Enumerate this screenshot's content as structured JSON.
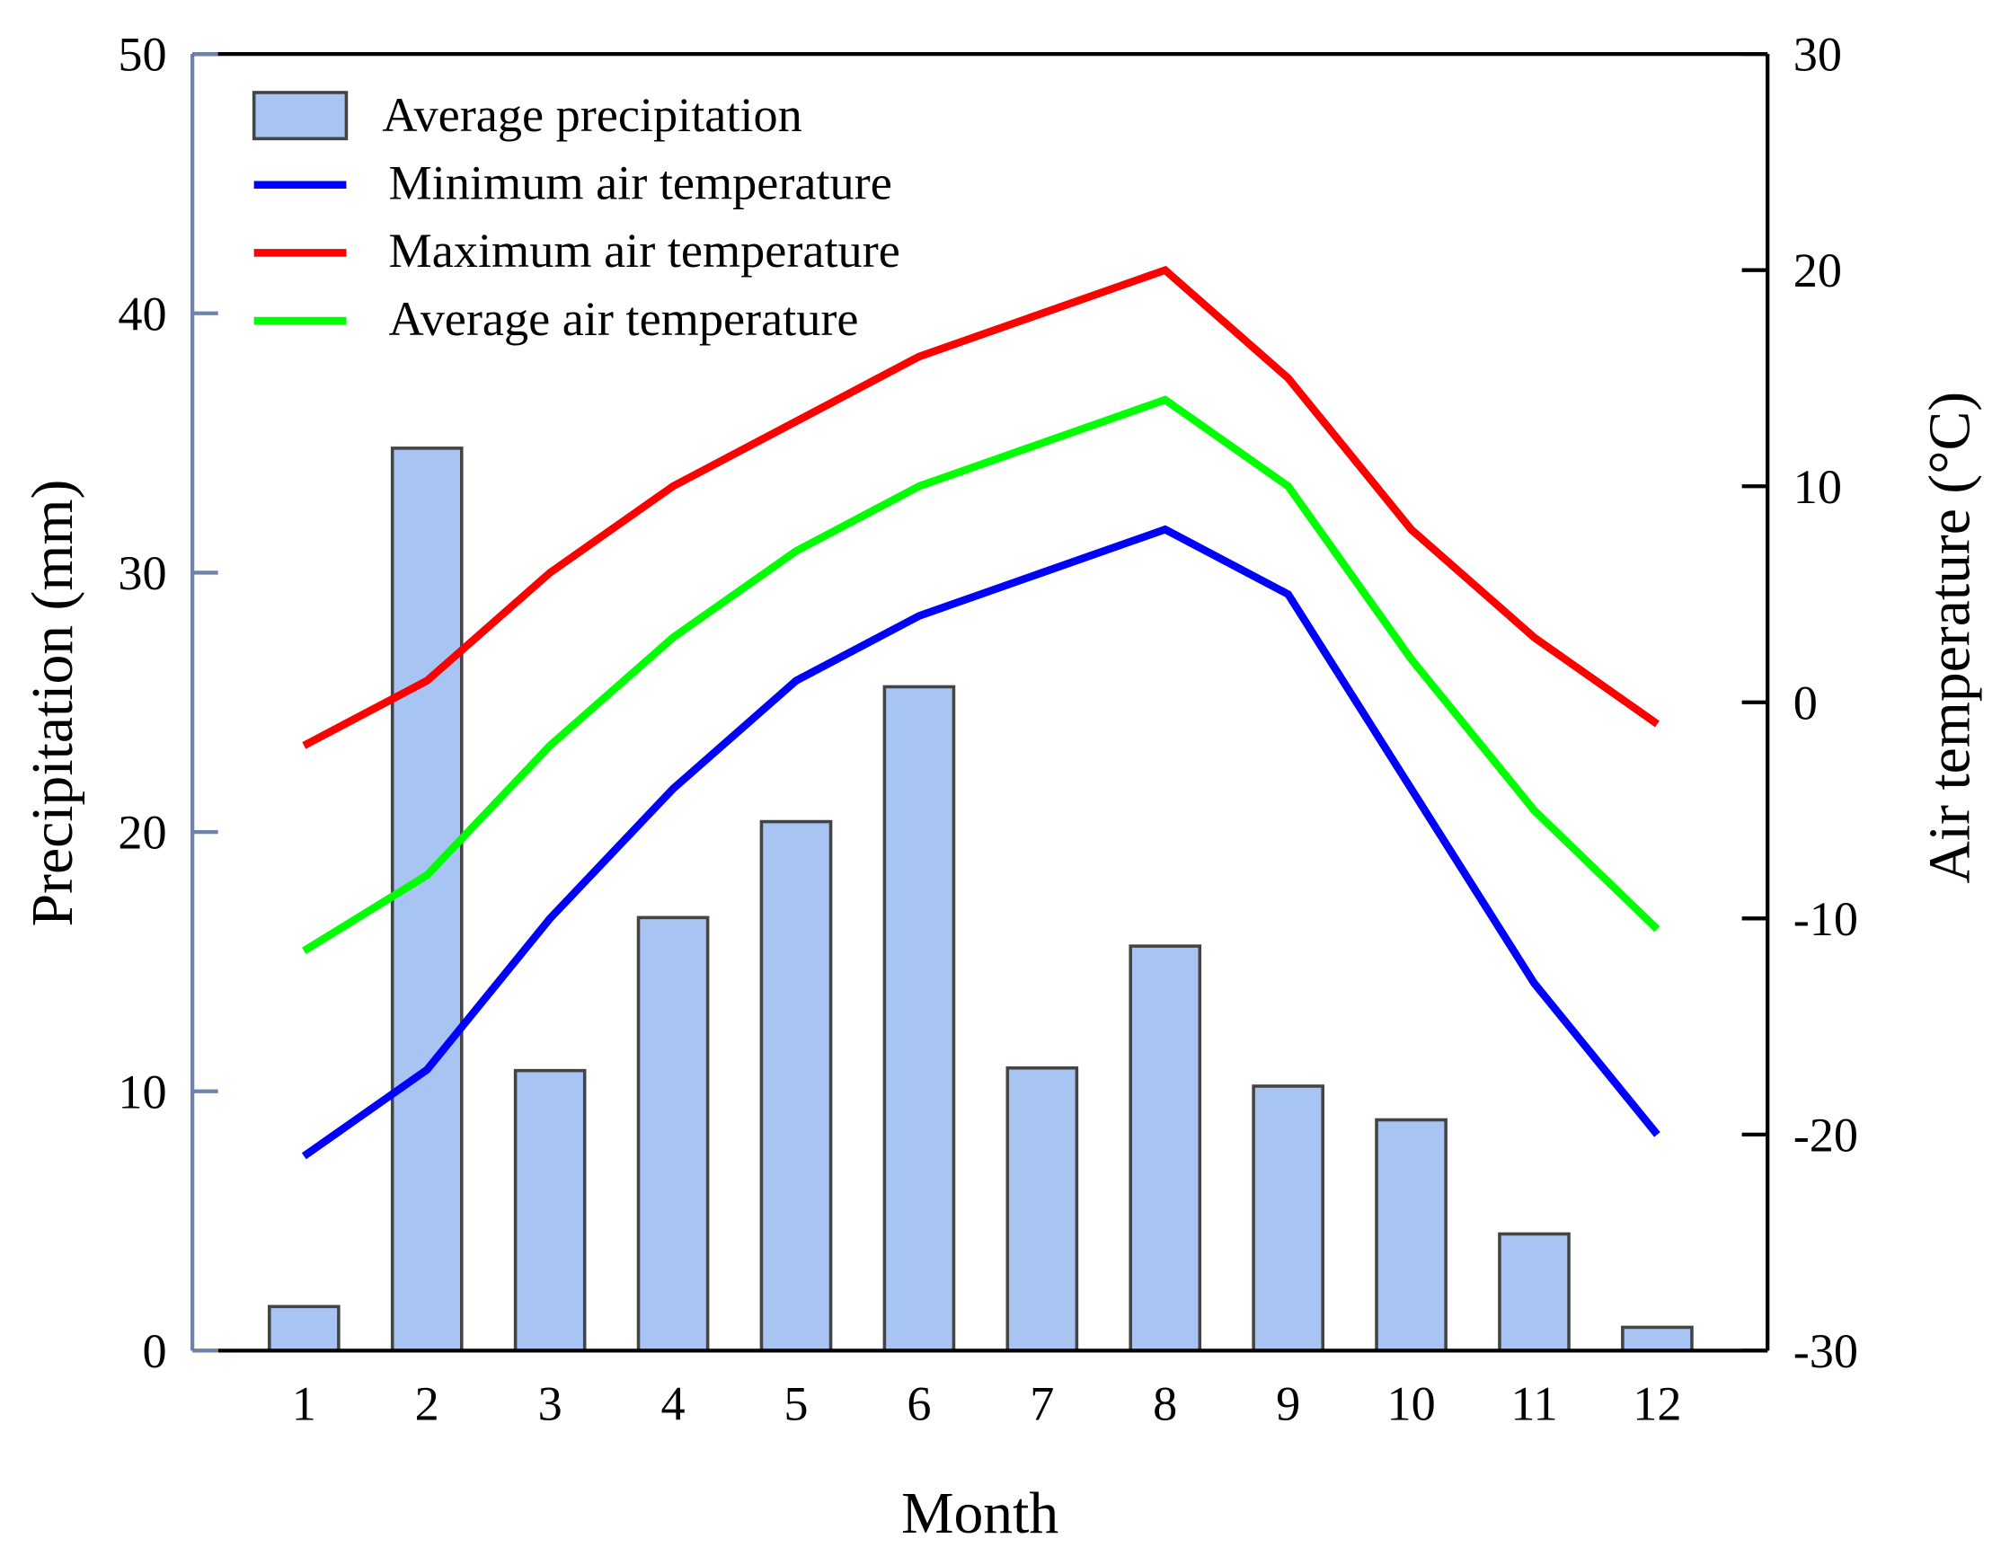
{
  "chart_data": {
    "type": "bar+line",
    "xlabel": "Month",
    "ylabel_left": "Precipitation (mm)",
    "ylabel_right": "Air temperature (°C)",
    "categories": [
      "1",
      "2",
      "3",
      "4",
      "5",
      "6",
      "7",
      "8",
      "9",
      "10",
      "11",
      "12"
    ],
    "ylim_left": [
      0,
      50
    ],
    "yticks_left": [
      "0",
      "10",
      "20",
      "30",
      "40",
      "50"
    ],
    "ylim_right": [
      -30,
      30
    ],
    "yticks_right": [
      "-30",
      "-20",
      "-10",
      "0",
      "10",
      "20",
      "30"
    ],
    "grid": false,
    "legend_position": "top-left",
    "series": [
      {
        "name": "Average precipitation",
        "type": "bar",
        "axis": "left",
        "color": "#a8c4f2",
        "values": [
          1.7,
          34.8,
          10.8,
          16.7,
          20.4,
          25.6,
          10.9,
          15.6,
          10.2,
          8.9,
          4.5,
          0.9
        ]
      },
      {
        "name": "Minimum air temperature",
        "type": "line",
        "axis": "right",
        "color": "#0000ff",
        "values": [
          -21,
          -17,
          -10,
          -4,
          1,
          4,
          6,
          8,
          5,
          -4,
          -13,
          -20
        ]
      },
      {
        "name": "Maximum air temperature",
        "type": "line",
        "axis": "right",
        "color": "#ff0000",
        "values": [
          -2,
          1,
          6,
          10,
          13,
          16,
          18,
          20,
          15,
          8,
          3,
          -1
        ]
      },
      {
        "name": "Average air temperature",
        "type": "line",
        "axis": "right",
        "color": "#00ff00",
        "values": [
          -11.5,
          -8,
          -2,
          3,
          7,
          10,
          12,
          14,
          10,
          2,
          -5,
          -10.5
        ]
      }
    ]
  }
}
